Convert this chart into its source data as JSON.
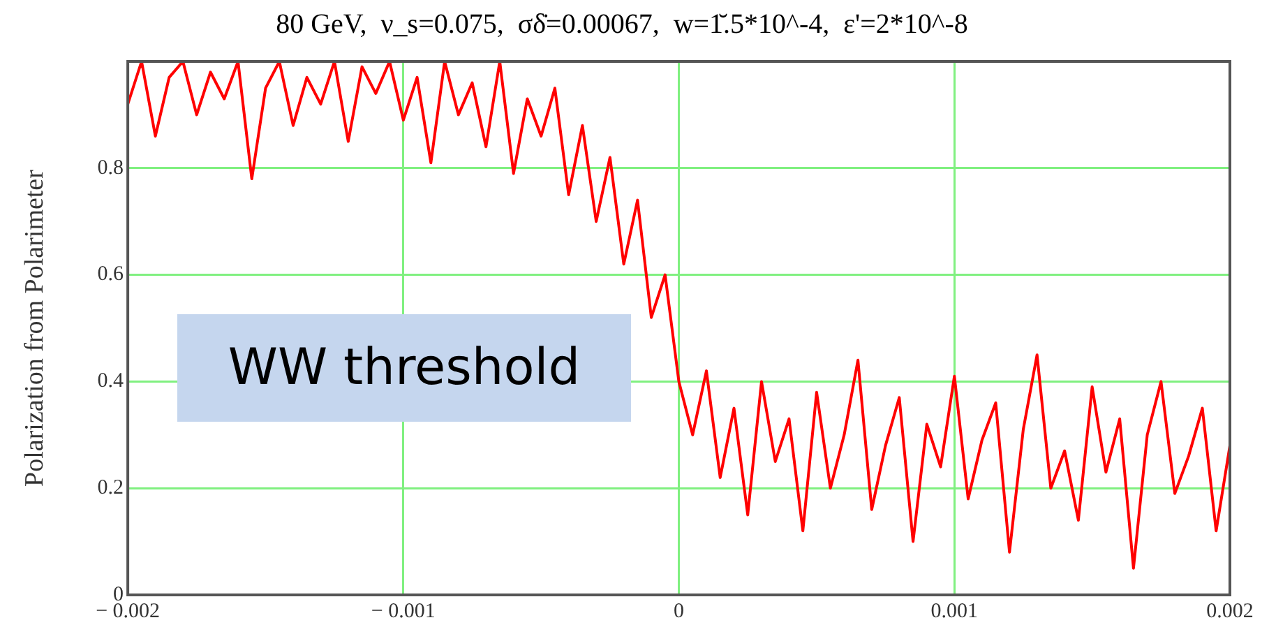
{
  "chart_data": {
    "type": "line",
    "title": "80 GeV,  ν_s=0.075,  σδ̇=0.00067,  w=1̆.5*10^-4,  ε'=2*10^-8",
    "ylabel": "Polarization from Polarimeter",
    "annotations": [
      "WW threshold"
    ],
    "x": [
      -0.002,
      -0.00195,
      -0.0019,
      -0.00185,
      -0.0018,
      -0.00175,
      -0.0017,
      -0.00165,
      -0.0016,
      -0.00155,
      -0.0015,
      -0.00145,
      -0.0014,
      -0.00135,
      -0.0013,
      -0.00125,
      -0.0012,
      -0.00115,
      -0.0011,
      -0.00105,
      -0.001,
      -0.00095,
      -0.0009,
      -0.00085,
      -0.0008,
      -0.00075,
      -0.0007,
      -0.00065,
      -0.0006,
      -0.00055,
      -0.0005,
      -0.00045,
      -0.0004,
      -0.00035,
      -0.0003,
      -0.00025,
      -0.0002,
      -0.00015,
      -0.0001,
      -5e-05,
      0,
      5e-05,
      0.0001,
      0.00015,
      0.0002,
      0.00025,
      0.0003,
      0.00035,
      0.0004,
      0.00045,
      0.0005,
      0.00055,
      0.0006,
      0.00065,
      0.0007,
      0.00075,
      0.0008,
      0.00085,
      0.0009,
      0.00095,
      0.001,
      0.00105,
      0.0011,
      0.00115,
      0.0012,
      0.00125,
      0.0013,
      0.00135,
      0.0014,
      0.00145,
      0.0015,
      0.00155,
      0.0016,
      0.00165,
      0.0017,
      0.00175,
      0.0018,
      0.00185,
      0.0019,
      0.00195,
      0.002
    ],
    "series": [
      {
        "color": "#ff0000",
        "values": [
          0.92,
          1.0,
          0.86,
          0.97,
          1.0,
          0.9,
          0.98,
          0.93,
          1.0,
          0.78,
          0.95,
          1.0,
          0.88,
          0.97,
          0.92,
          1.0,
          0.85,
          0.99,
          0.94,
          1.0,
          0.89,
          0.97,
          0.81,
          1.0,
          0.9,
          0.96,
          0.84,
          1.0,
          0.79,
          0.93,
          0.86,
          0.95,
          0.75,
          0.88,
          0.7,
          0.82,
          0.62,
          0.74,
          0.52,
          0.6,
          0.4,
          0.3,
          0.42,
          0.22,
          0.35,
          0.15,
          0.4,
          0.25,
          0.33,
          0.12,
          0.38,
          0.2,
          0.3,
          0.44,
          0.16,
          0.28,
          0.37,
          0.1,
          0.32,
          0.24,
          0.41,
          0.18,
          0.29,
          0.36,
          0.08,
          0.31,
          0.45,
          0.2,
          0.27,
          0.14,
          0.39,
          0.23,
          0.33,
          0.05,
          0.3,
          0.4,
          0.19,
          0.26,
          0.35,
          0.12,
          0.28
        ]
      }
    ],
    "xlim": [
      -0.002,
      0.002
    ],
    "xticks": [
      {
        "value": -0.002,
        "label": "− 0.002"
      },
      {
        "value": -0.001,
        "label": "− 0.001"
      },
      0,
      0.001,
      0.002
    ],
    "ylim": [
      0,
      1
    ],
    "yticks": [
      0,
      0.2,
      0.4,
      0.6,
      0.8
    ],
    "grid": true,
    "marker": "none",
    "line_style": "solid"
  }
}
